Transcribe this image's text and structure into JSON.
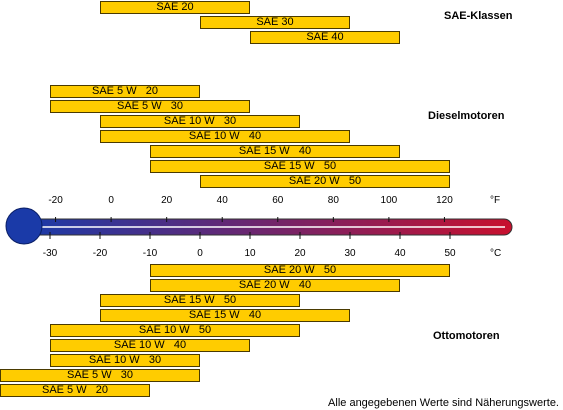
{
  "chart_data": {
    "type": "bar",
    "subtype": "range-bar",
    "x_unit_celsius": "°C",
    "x_unit_fahrenheit": "°F",
    "celsius_ticks": [
      -30,
      -20,
      -10,
      0,
      10,
      20,
      30,
      40,
      50
    ],
    "fahrenheit_ticks": [
      -20,
      0,
      20,
      40,
      60,
      80,
      100,
      120
    ],
    "xlim_celsius": [
      -40,
      60
    ],
    "colors": {
      "bar_fill": "#ffcc00",
      "bar_border": "#4a3a00",
      "thermometer_cold": "#1a3aa8",
      "thermometer_hot": "#c8102e"
    },
    "groups": [
      {
        "title": "SAE-Klassen",
        "bars": [
          {
            "label": "SAE 20",
            "from_c": -20,
            "to_c": 10
          },
          {
            "label": "SAE 30",
            "from_c": 0,
            "to_c": 30
          },
          {
            "label": "SAE 40",
            "from_c": 10,
            "to_c": 40
          }
        ]
      },
      {
        "title": "Dieselmotoren",
        "bars": [
          {
            "label": "SAE 5 W   20",
            "from_c": -30,
            "to_c": 0
          },
          {
            "label": "SAE 5 W   30",
            "from_c": -30,
            "to_c": 10
          },
          {
            "label": "SAE 10 W   30",
            "from_c": -20,
            "to_c": 20
          },
          {
            "label": "SAE 10 W   40",
            "from_c": -20,
            "to_c": 30
          },
          {
            "label": "SAE 15 W   40",
            "from_c": -10,
            "to_c": 40
          },
          {
            "label": "SAE 15 W   50",
            "from_c": -10,
            "to_c": 50
          },
          {
            "label": "SAE 20 W   50",
            "from_c": 0,
            "to_c": 50
          }
        ]
      },
      {
        "title": "Ottomotoren",
        "bars": [
          {
            "label": "SAE 20 W   50",
            "from_c": -10,
            "to_c": 50
          },
          {
            "label": "SAE 20 W   40",
            "from_c": -10,
            "to_c": 40
          },
          {
            "label": "SAE 15 W   50",
            "from_c": -20,
            "to_c": 20
          },
          {
            "label": "SAE 15 W   40",
            "from_c": -20,
            "to_c": 30
          },
          {
            "label": "SAE 10 W   50",
            "from_c": -30,
            "to_c": 20
          },
          {
            "label": "SAE 10 W   40",
            "from_c": -30,
            "to_c": 10
          },
          {
            "label": "SAE 10 W   30",
            "from_c": -30,
            "to_c": 0
          },
          {
            "label": "SAE 5 W   30",
            "from_c": -40,
            "to_c": 0
          },
          {
            "label": "SAE 5 W   20",
            "from_c": -40,
            "to_c": -10
          }
        ]
      }
    ]
  },
  "footnote": "Alle angegebenen Werte sind Näherungswerte."
}
